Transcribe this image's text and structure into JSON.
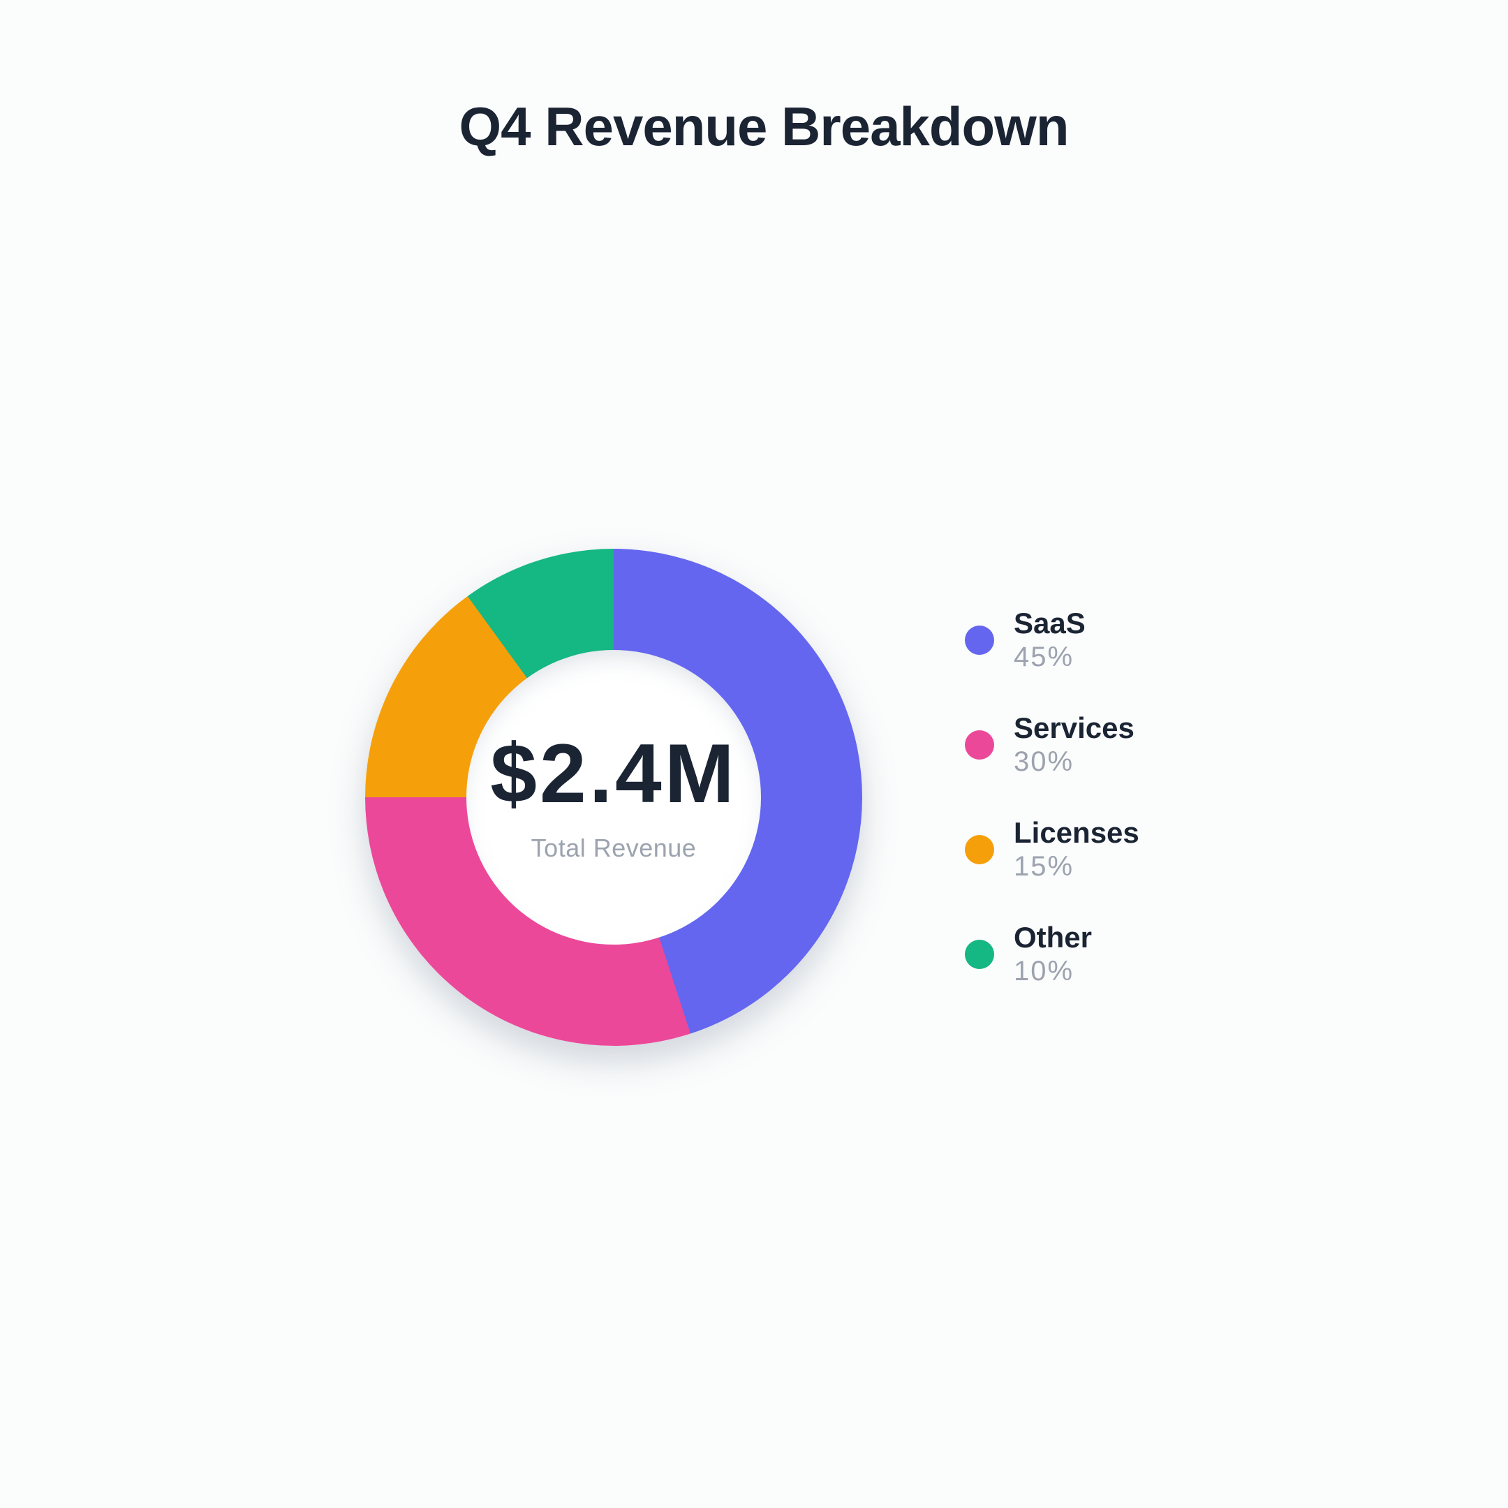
{
  "chart_data": {
    "type": "pie",
    "subtype": "donut",
    "title": "Q4 Revenue Breakdown",
    "center": {
      "value": "$2.4M",
      "label": "Total Revenue"
    },
    "series": [
      {
        "name": "SaaS",
        "value_pct": 45,
        "percent_label": "45%",
        "color": "#6466EF"
      },
      {
        "name": "Services",
        "value_pct": 30,
        "percent_label": "30%",
        "color": "#EC4899"
      },
      {
        "name": "Licenses",
        "value_pct": 15,
        "percent_label": "15%",
        "color": "#F5A00B"
      },
      {
        "name": "Other",
        "value_pct": 10,
        "percent_label": "10%",
        "color": "#15B783"
      }
    ],
    "start_angle_deg": 0,
    "direction": "clockwise",
    "legend_position": "right"
  },
  "colors": {
    "background": "#FBFCFC",
    "text_dark": "#1B2433",
    "text_muted": "#9CA3AF",
    "center_fill": "#FFFFFF"
  }
}
